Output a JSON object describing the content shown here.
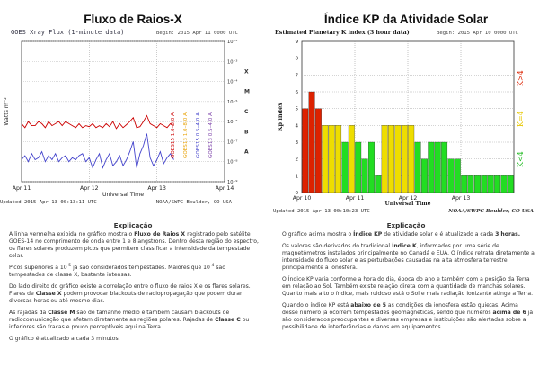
{
  "left": {
    "title": "Fluxo de Raios-X",
    "explanation_title": "Explicação",
    "paragraphs": [
      [
        {
          "t": "A linha vermelha exibida no gráfico mostra o "
        },
        {
          "t": "Fluxo de Raios X",
          "b": true
        },
        {
          "t": " registrado pelo satélite GOES-14 no comprimento de onda entre 1 e 8 angstrons. Dentro desta região do espectro, os flares solares produzem picos que permitem classificar a intensidade da tempestade solar."
        }
      ],
      [
        {
          "t": "Picos superiores a 10"
        },
        {
          "t": "-5",
          "sup": true
        },
        {
          "t": " já são considerados tempestades. Maiores que 10"
        },
        {
          "t": "-4",
          "sup": true
        },
        {
          "t": " são tempestades de classe X, bastante intensas."
        }
      ],
      [
        {
          "t": "Do lado direito do gráfico existe a correlação entre o fluxo de raios X e os flares solares. Flares de "
        },
        {
          "t": "Classe X",
          "b": true
        },
        {
          "t": " podem provocar blackouts de radiopropagação que podem durar diversas horas ou até mesmo dias."
        }
      ],
      [
        {
          "t": "As rajadas da "
        },
        {
          "t": "Classe M",
          "b": true
        },
        {
          "t": " são de tamanho médio e também causam blackouts de radiocomunicação que afetam diretamente as regiões polares. Rajadas de "
        },
        {
          "t": "Classe C",
          "b": true
        },
        {
          "t": " ou inferiores são fracas e pouco perceptíveis aqui na Terra."
        }
      ],
      [
        {
          "t": "O gráfico é atualizado a cada 3 minutos."
        }
      ]
    ]
  },
  "right": {
    "title": "Índice KP da Atividade Solar",
    "explanation_title": "Explicação",
    "paragraphs": [
      [
        {
          "t": "O gráfico acima mostra o "
        },
        {
          "t": "Índice KP",
          "b": true
        },
        {
          "t": " de atividade solar e é atualizado a cada "
        },
        {
          "t": "3 horas.",
          "b": true
        }
      ],
      [
        {
          "t": "Os valores são derivados do tradicional "
        },
        {
          "t": "Índice K",
          "b": true
        },
        {
          "t": ", informados por uma série de magnetômetros instalados principalmente no Canadá e EUA. O índice retrata diretamente a intensidade do fluxo solar e as perturbações causadas na alta atmosfera terrestre, principalmente a ionosfera."
        }
      ],
      [
        {
          "t": "O Índice KP varia conforme a hora do dia, época do ano e também com a posição da Terra em relação ao Sol. Também existe relação direta com a quantidade de manchas solares. Quanto mais alto o índice, mais ruidoso está o Sol e mais radiação ionizante atinge a Terra."
        }
      ],
      [
        {
          "t": "Quando o índice KP está "
        },
        {
          "t": "abaixo de 5",
          "b": true
        },
        {
          "t": " as condições da ionosfera estão quietas. Acima desse número já ocorrem tempestades geomagnéticas, sendo que números "
        },
        {
          "t": "acima de 6",
          "b": true
        },
        {
          "t": " já são considerados preocupantes e diversas empresas e instituições são alertadas sobre a possibilidade de interferências e danos em equipamentos."
        }
      ]
    ]
  },
  "chart_data": [
    {
      "type": "line",
      "title": "GOES Xray Flux (1-minute data)",
      "begin_label": "Begin: 2015 Apr 11 0000 UTC",
      "ylabel": "Watts m⁻²",
      "xlabel": "Universal Time",
      "yscale": "log",
      "ylim_exp": [
        -9,
        -2
      ],
      "y_ticks": [
        "10⁻²",
        "10⁻³",
        "10⁻⁴",
        "10⁻⁵",
        "10⁻⁶",
        "10⁻⁷",
        "10⁻⁸",
        "10⁻⁹"
      ],
      "x_ticks": [
        "Apr 11",
        "Apr 12",
        "Apr 13",
        "Apr 14"
      ],
      "flare_classes": [
        "X",
        "M",
        "C",
        "B",
        "A"
      ],
      "legend": [
        {
          "name": "GOES15 1.0–8.0 A",
          "color": "#cc0000"
        },
        {
          "name": "GOES13 1.0–8.0 A",
          "color": "#e8a000"
        },
        {
          "name": "GOES15 0.5–4.0 A",
          "color": "#4444cc"
        },
        {
          "name": "GOES13 0.5–4.0 A",
          "color": "#7a3fa8"
        }
      ],
      "series": [
        {
          "name": "GOES15 1.0–8.0 A",
          "color": "#cc0000",
          "x": [
            0,
            0.05,
            0.1,
            0.15,
            0.2,
            0.25,
            0.3,
            0.35,
            0.4,
            0.45,
            0.5,
            0.55,
            0.6,
            0.65,
            0.7,
            0.75,
            0.8,
            0.85,
            0.9,
            0.95,
            1.0,
            1.05,
            1.1,
            1.15,
            1.2,
            1.25,
            1.3,
            1.35,
            1.4,
            1.45,
            1.5,
            1.55,
            1.6,
            1.65,
            1.7,
            1.75,
            1.8,
            1.85,
            1.9,
            1.95,
            2.0,
            2.05,
            2.1,
            2.15,
            2.2,
            2.25
          ],
          "y": [
            -6.1,
            -6.3,
            -6.0,
            -6.2,
            -6.2,
            -6.0,
            -6.1,
            -6.3,
            -6.0,
            -6.2,
            -6.1,
            -6.0,
            -6.2,
            -6.0,
            -6.1,
            -6.2,
            -6.3,
            -6.1,
            -6.3,
            -6.2,
            -6.25,
            -6.1,
            -6.3,
            -6.2,
            -6.3,
            -6.1,
            -6.25,
            -6.0,
            -6.35,
            -6.1,
            -6.3,
            -6.15,
            -6.0,
            -5.8,
            -6.3,
            -6.25,
            -6.0,
            -5.7,
            -6.1,
            -6.2,
            -6.3,
            -6.1,
            -6.2,
            -6.3,
            -6.1,
            -6.2
          ]
        },
        {
          "name": "GOES15 0.5–4.0 A",
          "color": "#4444cc",
          "x": [
            0,
            0.05,
            0.1,
            0.15,
            0.2,
            0.25,
            0.3,
            0.35,
            0.4,
            0.45,
            0.5,
            0.55,
            0.6,
            0.65,
            0.7,
            0.75,
            0.8,
            0.85,
            0.9,
            0.95,
            1.0,
            1.05,
            1.1,
            1.15,
            1.2,
            1.25,
            1.3,
            1.35,
            1.4,
            1.45,
            1.5,
            1.55,
            1.6,
            1.65,
            1.7,
            1.75,
            1.8,
            1.85,
            1.9,
            1.95,
            2.0,
            2.05,
            2.1,
            2.15,
            2.2,
            2.25
          ],
          "y": [
            -7.9,
            -7.7,
            -8.0,
            -7.6,
            -7.9,
            -7.8,
            -7.5,
            -8.0,
            -7.7,
            -7.9,
            -7.6,
            -8.0,
            -7.8,
            -7.7,
            -8.0,
            -7.8,
            -7.9,
            -7.7,
            -7.6,
            -8.0,
            -7.8,
            -8.3,
            -7.9,
            -7.6,
            -8.3,
            -7.9,
            -7.6,
            -8.2,
            -8.0,
            -7.7,
            -8.2,
            -7.9,
            -7.5,
            -7.0,
            -8.3,
            -7.6,
            -7.2,
            -6.6,
            -7.8,
            -8.2,
            -7.9,
            -7.5,
            -8.1,
            -7.8,
            -7.6,
            -7.9
          ]
        }
      ]
    },
    {
      "type": "bar",
      "title": "Estimated Planetary K index (3 hour data)",
      "begin_label": "Begin: 2015 Apr 10 0000 UTC",
      "ylabel": "Kp index",
      "xlabel": "Universal Time",
      "updated": "Updated 2015 Apr 13 00:10:23 UTC",
      "credit": "NOAA/SWPC Boulder, CO USA",
      "ylim": [
        0,
        9
      ],
      "y_ticks": [
        0,
        1,
        2,
        3,
        4,
        5,
        6,
        7,
        8,
        9
      ],
      "x_ticks": [
        "Apr 10",
        "Apr 11",
        "Apr 12",
        "Apr 13"
      ],
      "right_labels": [
        {
          "text": "K<4",
          "color": "#22bb22"
        },
        {
          "text": "K=4",
          "color": "#e8c800"
        },
        {
          "text": "K>4",
          "color": "#dd2200"
        }
      ],
      "values": [
        5,
        6,
        5,
        4,
        4,
        4,
        3,
        4,
        3,
        2,
        3,
        1,
        4,
        4,
        4,
        4,
        4,
        3,
        2,
        3,
        3,
        3,
        2,
        2,
        1,
        1,
        1,
        1,
        1,
        1,
        1,
        1
      ],
      "colors": {
        "low": "#22dd22",
        "mid": "#eedd00",
        "high": "#dd2200"
      }
    }
  ],
  "footer_left": {
    "updated": "Updated 2015 Apr 13 00:13:11 UTC",
    "credit": "NOAA/SWPC Boulder, CO USA"
  }
}
